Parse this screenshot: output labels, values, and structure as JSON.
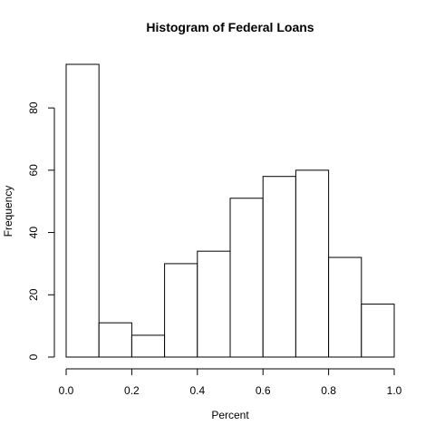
{
  "chart_data": {
    "type": "bar",
    "title": "Histogram of Federal Loans",
    "xlabel": "Percent",
    "ylabel": "Frequency",
    "bins": [
      {
        "start": 0.0,
        "end": 0.1,
        "count": 94
      },
      {
        "start": 0.1,
        "end": 0.2,
        "count": 11
      },
      {
        "start": 0.2,
        "end": 0.3,
        "count": 7
      },
      {
        "start": 0.3,
        "end": 0.4,
        "count": 30
      },
      {
        "start": 0.4,
        "end": 0.5,
        "count": 34
      },
      {
        "start": 0.5,
        "end": 0.6,
        "count": 51
      },
      {
        "start": 0.6,
        "end": 0.7,
        "count": 58
      },
      {
        "start": 0.7,
        "end": 0.8,
        "count": 60
      },
      {
        "start": 0.8,
        "end": 0.9,
        "count": 32
      },
      {
        "start": 0.9,
        "end": 1.0,
        "count": 17
      }
    ],
    "xlim": [
      0,
      1
    ],
    "ylim": [
      0,
      94
    ],
    "x_ticks": [
      "0.0",
      "0.2",
      "0.4",
      "0.6",
      "0.8",
      "1.0"
    ],
    "y_ticks": [
      "0",
      "20",
      "40",
      "60",
      "80"
    ],
    "grid": false,
    "legend": "none",
    "bar_fill": "#ffffff",
    "bar_stroke": "#000000"
  }
}
